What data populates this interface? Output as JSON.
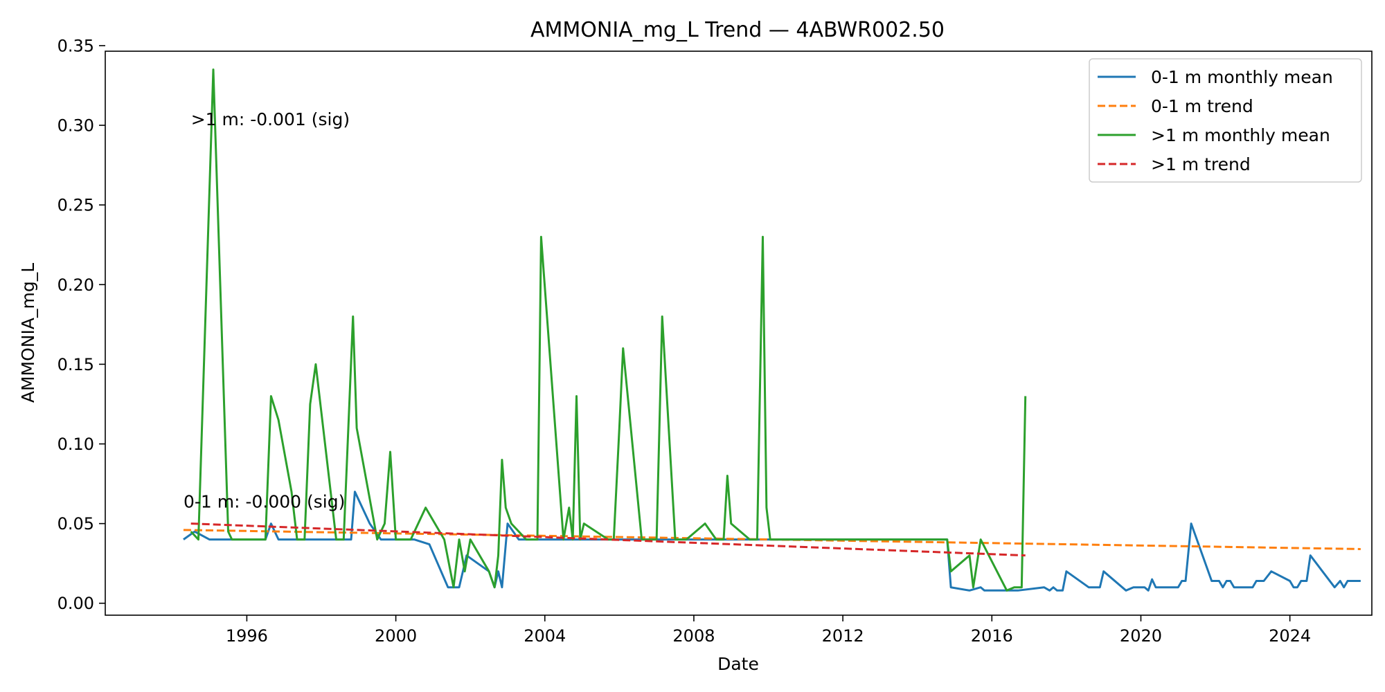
{
  "chart_data": {
    "type": "line",
    "title": "AMMONIA_mg_L Trend — 4ABWR002.50",
    "xlabel": "Date",
    "ylabel": "AMMONIA_mg_L",
    "xlim": [
      1992.2,
      2026.2
    ],
    "ylim": [
      -0.0075,
      0.3465
    ],
    "x_ticks": [
      1996,
      2000,
      2004,
      2008,
      2012,
      2016,
      2020,
      2024
    ],
    "x_tick_labels": [
      "1996",
      "2000",
      "2004",
      "2008",
      "2012",
      "2016",
      "2020",
      "2024"
    ],
    "y_ticks": [
      0.0,
      0.05,
      0.1,
      0.15,
      0.2,
      0.25,
      0.3,
      0.35
    ],
    "y_tick_labels": [
      "0.00",
      "0.05",
      "0.10",
      "0.15",
      "0.20",
      "0.25",
      "0.30",
      "0.35"
    ],
    "grid": false,
    "legend_position": "top-right",
    "series": [
      {
        "name": "0-1 m monthly mean",
        "color": "#1f77b4",
        "style": "solid",
        "points": [
          [
            1994.3,
            0.04
          ],
          [
            1994.6,
            0.045
          ],
          [
            1995.0,
            0.04
          ],
          [
            1996.5,
            0.04
          ],
          [
            1996.65,
            0.05
          ],
          [
            1996.85,
            0.04
          ],
          [
            1997.5,
            0.04
          ],
          [
            1998.5,
            0.04
          ],
          [
            1998.8,
            0.04
          ],
          [
            1998.9,
            0.07
          ],
          [
            1999.3,
            0.05
          ],
          [
            1999.6,
            0.04
          ],
          [
            2000.5,
            0.04
          ],
          [
            2000.9,
            0.037
          ],
          [
            2001.4,
            0.01
          ],
          [
            2001.7,
            0.01
          ],
          [
            2001.9,
            0.03
          ],
          [
            2002.5,
            0.02
          ],
          [
            2002.65,
            0.01
          ],
          [
            2002.75,
            0.02
          ],
          [
            2002.85,
            0.01
          ],
          [
            2003.0,
            0.05
          ],
          [
            2003.3,
            0.04
          ],
          [
            2006.0,
            0.04
          ],
          [
            2010.0,
            0.04
          ],
          [
            2014.8,
            0.04
          ],
          [
            2014.9,
            0.01
          ],
          [
            2015.4,
            0.008
          ],
          [
            2015.7,
            0.01
          ],
          [
            2015.8,
            0.008
          ],
          [
            2016.4,
            0.008
          ],
          [
            2016.7,
            0.008
          ],
          [
            2017.4,
            0.01
          ],
          [
            2017.55,
            0.008
          ],
          [
            2017.65,
            0.01
          ],
          [
            2017.75,
            0.008
          ],
          [
            2017.9,
            0.008
          ],
          [
            2018.0,
            0.02
          ],
          [
            2018.6,
            0.01
          ],
          [
            2018.8,
            0.01
          ],
          [
            2018.9,
            0.01
          ],
          [
            2019.0,
            0.02
          ],
          [
            2019.6,
            0.008
          ],
          [
            2019.8,
            0.01
          ],
          [
            2020.1,
            0.01
          ],
          [
            2020.2,
            0.008
          ],
          [
            2020.3,
            0.015
          ],
          [
            2020.4,
            0.01
          ],
          [
            2021.0,
            0.01
          ],
          [
            2021.1,
            0.014
          ],
          [
            2021.2,
            0.014
          ],
          [
            2021.35,
            0.05
          ],
          [
            2021.9,
            0.014
          ],
          [
            2022.1,
            0.014
          ],
          [
            2022.2,
            0.01
          ],
          [
            2022.3,
            0.014
          ],
          [
            2022.4,
            0.014
          ],
          [
            2022.5,
            0.01
          ],
          [
            2023.0,
            0.01
          ],
          [
            2023.1,
            0.014
          ],
          [
            2023.3,
            0.014
          ],
          [
            2023.5,
            0.02
          ],
          [
            2024.0,
            0.014
          ],
          [
            2024.1,
            0.01
          ],
          [
            2024.2,
            0.01
          ],
          [
            2024.3,
            0.014
          ],
          [
            2024.45,
            0.014
          ],
          [
            2024.55,
            0.03
          ],
          [
            2025.2,
            0.01
          ],
          [
            2025.35,
            0.014
          ],
          [
            2025.45,
            0.01
          ],
          [
            2025.55,
            0.014
          ],
          [
            2025.9,
            0.014
          ]
        ]
      },
      {
        "name": "0-1 m trend",
        "color": "#ff7f0e",
        "style": "dashed",
        "points": [
          [
            1994.3,
            0.046
          ],
          [
            2025.9,
            0.034
          ]
        ]
      },
      {
        "name": ">1 m monthly mean",
        "color": "#2ca02c",
        "style": "solid",
        "points": [
          [
            1994.5,
            0.045
          ],
          [
            1994.7,
            0.04
          ],
          [
            1995.1,
            0.335
          ],
          [
            1995.5,
            0.045
          ],
          [
            1995.6,
            0.04
          ],
          [
            1996.5,
            0.04
          ],
          [
            1996.65,
            0.13
          ],
          [
            1996.85,
            0.115
          ],
          [
            1997.2,
            0.07
          ],
          [
            1997.35,
            0.04
          ],
          [
            1997.55,
            0.04
          ],
          [
            1997.7,
            0.125
          ],
          [
            1997.85,
            0.15
          ],
          [
            1998.4,
            0.04
          ],
          [
            1998.6,
            0.04
          ],
          [
            1998.85,
            0.18
          ],
          [
            1998.95,
            0.11
          ],
          [
            1999.5,
            0.04
          ],
          [
            1999.7,
            0.05
          ],
          [
            1999.85,
            0.095
          ],
          [
            2000.0,
            0.04
          ],
          [
            2000.4,
            0.04
          ],
          [
            2000.8,
            0.06
          ],
          [
            2001.3,
            0.04
          ],
          [
            2001.55,
            0.01
          ],
          [
            2001.7,
            0.04
          ],
          [
            2001.85,
            0.02
          ],
          [
            2002.0,
            0.04
          ],
          [
            2002.5,
            0.02
          ],
          [
            2002.65,
            0.01
          ],
          [
            2002.75,
            0.03
          ],
          [
            2002.85,
            0.09
          ],
          [
            2002.95,
            0.06
          ],
          [
            2003.1,
            0.05
          ],
          [
            2003.5,
            0.04
          ],
          [
            2003.8,
            0.04
          ],
          [
            2003.9,
            0.23
          ],
          [
            2004.5,
            0.04
          ],
          [
            2004.65,
            0.06
          ],
          [
            2004.75,
            0.04
          ],
          [
            2004.85,
            0.13
          ],
          [
            2004.95,
            0.04
          ],
          [
            2005.05,
            0.05
          ],
          [
            2005.7,
            0.04
          ],
          [
            2005.85,
            0.04
          ],
          [
            2006.0,
            0.11
          ],
          [
            2006.1,
            0.16
          ],
          [
            2006.6,
            0.04
          ],
          [
            2007.0,
            0.04
          ],
          [
            2007.15,
            0.18
          ],
          [
            2007.5,
            0.04
          ],
          [
            2007.8,
            0.04
          ],
          [
            2008.3,
            0.05
          ],
          [
            2008.6,
            0.04
          ],
          [
            2008.8,
            0.04
          ],
          [
            2008.9,
            0.08
          ],
          [
            2009.0,
            0.05
          ],
          [
            2009.5,
            0.04
          ],
          [
            2009.7,
            0.04
          ],
          [
            2009.85,
            0.23
          ],
          [
            2009.95,
            0.06
          ],
          [
            2010.05,
            0.04
          ],
          [
            2012.0,
            0.04
          ],
          [
            2014.8,
            0.04
          ],
          [
            2014.9,
            0.02
          ],
          [
            2015.4,
            0.03
          ],
          [
            2015.5,
            0.01
          ],
          [
            2015.7,
            0.04
          ],
          [
            2016.4,
            0.008
          ],
          [
            2016.6,
            0.01
          ],
          [
            2016.8,
            0.01
          ],
          [
            2016.9,
            0.13
          ]
        ]
      },
      {
        "name": ">1 m trend",
        "color": "#d62728",
        "style": "dashed",
        "points": [
          [
            1994.5,
            0.05
          ],
          [
            2016.9,
            0.03
          ]
        ]
      }
    ],
    "annotations": [
      {
        "text": ">1 m: -0.001 (sig)",
        "x": 1994.5,
        "y": 0.3
      },
      {
        "text": "0-1 m: -0.000 (sig)",
        "x": 1994.3,
        "y": 0.06
      }
    ]
  }
}
